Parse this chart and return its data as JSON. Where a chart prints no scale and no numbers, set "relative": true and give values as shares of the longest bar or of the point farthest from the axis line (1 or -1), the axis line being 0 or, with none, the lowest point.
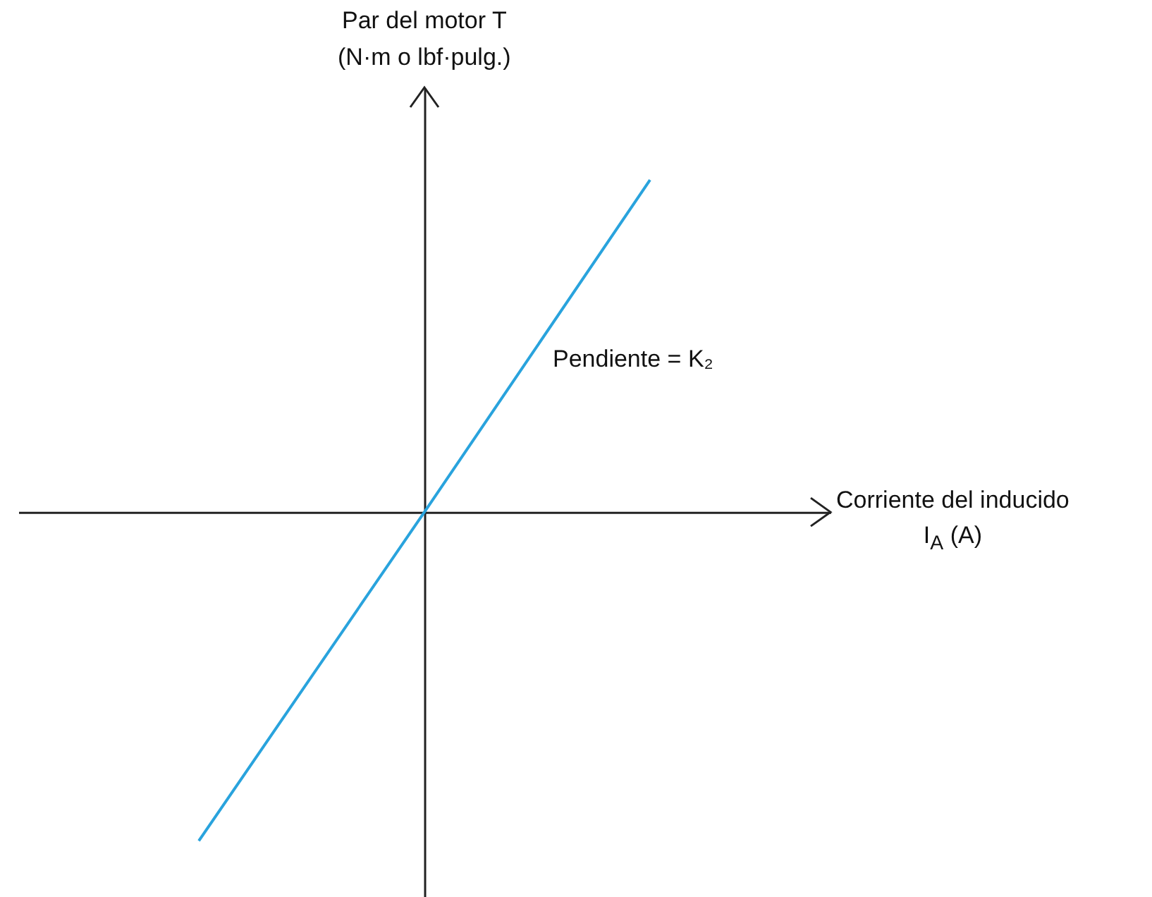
{
  "chart_data": {
    "type": "line",
    "xlabel": "Corriente del inducido\nI$_{A}$ (A)",
    "ylabel": "Par del motor T\n(N·m o lbf·pulg.)",
    "annotations": [
      "Pendiente = K₂"
    ],
    "categories": [
      null,
      null,
      null
    ],
    "series": [
      {
        "color": "#29a3dd",
        "values": [
          -0.99,
          0,
          1
        ]
      }
    ],
    "relative": true
  }
}
